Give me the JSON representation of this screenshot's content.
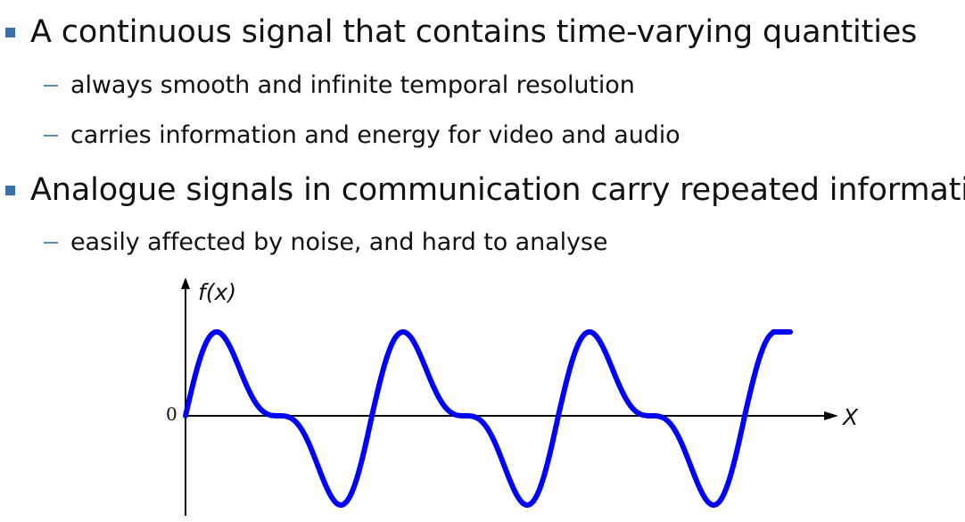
{
  "bullets": [
    {
      "text": "A continuous signal that contains time-varying quantities",
      "sub": [
        "always smooth and infinite temporal resolution",
        "carries information and energy for video and audio"
      ]
    },
    {
      "text": "Analogue signals in communication carry repeated information",
      "sub": [
        "easily affected by noise, and hard to analyse"
      ]
    }
  ],
  "diagram": {
    "y_label": "f(x)",
    "x_label": "X",
    "origin_label": "0",
    "axis_color": "#000000",
    "curve_color": "#0000ff",
    "bullet_color": "#3f6fa8",
    "dash_color": "#5b86b8"
  }
}
